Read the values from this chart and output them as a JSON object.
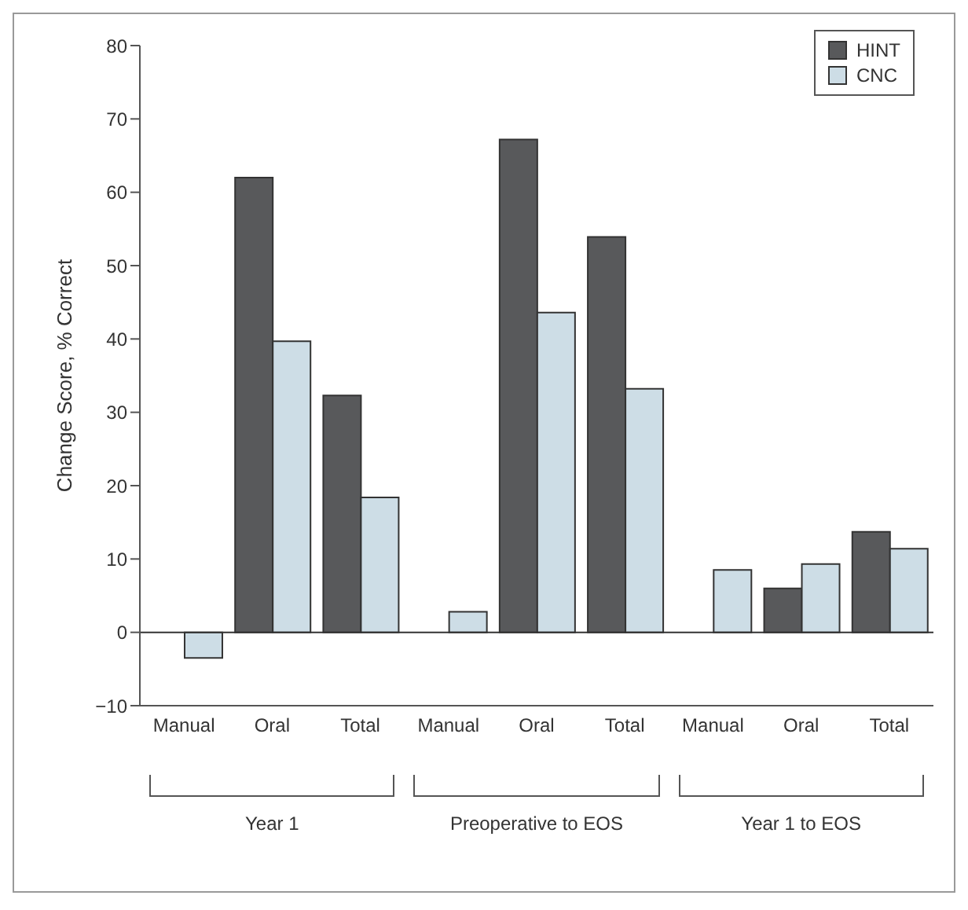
{
  "chart_data": {
    "type": "bar",
    "ylabel": "Change Score, % Correct",
    "categories": [
      "Manual",
      "Oral",
      "Total",
      "Manual",
      "Oral",
      "Total",
      "Manual",
      "Oral",
      "Total"
    ],
    "series": [
      {
        "name": "HINT",
        "color": "#58595b",
        "values": [
          null,
          62,
          32.3,
          null,
          67.2,
          53.9,
          null,
          6,
          13.7
        ]
      },
      {
        "name": "CNC",
        "color": "#cddde6",
        "values": [
          -3.5,
          39.7,
          18.4,
          2.8,
          43.6,
          33.2,
          8.5,
          9.3,
          11.4
        ]
      }
    ],
    "ylim": [
      -10,
      80
    ],
    "yticks": [
      {
        "value": -10,
        "label": "−10"
      },
      0,
      10,
      20,
      30,
      40,
      50,
      60,
      70,
      80
    ],
    "annotations": [
      "Year 1",
      "Preoperative to EOS",
      "Year 1 to EOS"
    ],
    "ref_lines": [
      {
        "axis": "y",
        "value": 0,
        "color": "#333333"
      }
    ],
    "legend": "top right"
  }
}
